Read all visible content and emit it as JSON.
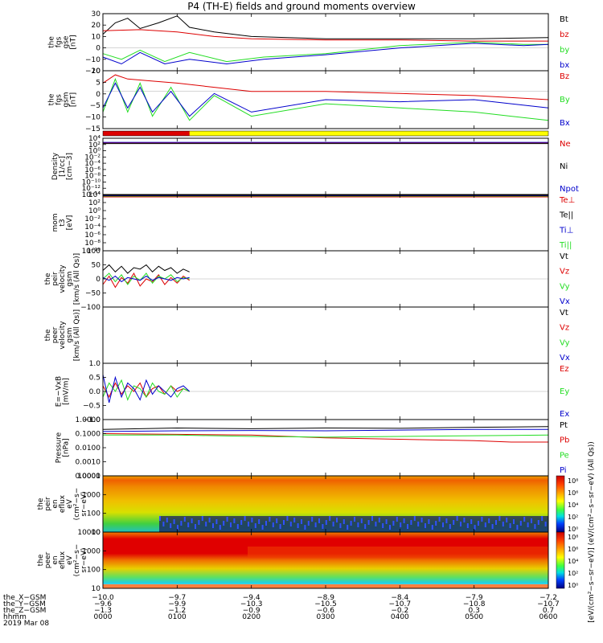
{
  "title": "P4 (TH-E) fields and ground moments overview",
  "colors": {
    "black": "#000000",
    "red": "#dd0000",
    "green": "#22dd22",
    "blue": "#0000cc",
    "yellow": "#ffff00"
  },
  "chart_data": [
    {
      "type": "line",
      "id": "fgs_gse",
      "ylabel": [
        "the",
        "fgs",
        "gse",
        "[nT]"
      ],
      "yticks": [
        "30",
        "20",
        "10",
        "0",
        "−10",
        "−20"
      ],
      "ylim": [
        -20,
        30
      ],
      "legend": [
        {
          "name": "Bt",
          "color": "black"
        },
        {
          "name": "bz",
          "color": "red"
        },
        {
          "name": "by",
          "color": "green"
        },
        {
          "name": "bx",
          "color": "blue"
        }
      ],
      "series": [
        {
          "name": "Bt",
          "color": "black",
          "x": [
            0,
            10,
            20,
            30,
            45,
            60,
            70,
            90,
            120,
            180,
            240,
            300,
            360
          ],
          "y": [
            12,
            22,
            26,
            17,
            22,
            28,
            18,
            14,
            10,
            8,
            8,
            8,
            9
          ]
        },
        {
          "name": "bz",
          "color": "red",
          "x": [
            0,
            30,
            60,
            90,
            120,
            180,
            240,
            300,
            360
          ],
          "y": [
            15,
            16,
            14,
            10,
            8,
            7,
            7,
            6,
            6
          ]
        },
        {
          "name": "by",
          "color": "green",
          "x": [
            0,
            15,
            30,
            50,
            70,
            100,
            130,
            180,
            240,
            300,
            340,
            360
          ],
          "y": [
            -5,
            -10,
            -2,
            -12,
            -4,
            -12,
            -8,
            -5,
            2,
            5,
            3,
            3
          ]
        },
        {
          "name": "bx",
          "color": "blue",
          "x": [
            0,
            15,
            30,
            50,
            70,
            100,
            130,
            180,
            240,
            300,
            340,
            360
          ],
          "y": [
            -8,
            -14,
            -4,
            -14,
            -10,
            -14,
            -10,
            -6,
            0,
            4,
            2,
            3
          ]
        }
      ]
    },
    {
      "type": "line",
      "id": "fgs_gsm",
      "ylabel": [
        "the",
        "fgs",
        "gsm",
        "[nT]"
      ],
      "yticks": [
        "10",
        "5",
        "0",
        "−5",
        "−10",
        "−15"
      ],
      "ylim": [
        -18,
        10
      ],
      "legend": [
        {
          "name": "Bz",
          "color": "red"
        },
        {
          "name": "By",
          "color": "green"
        },
        {
          "name": "Bx",
          "color": "blue"
        }
      ],
      "series": [
        {
          "name": "Bz",
          "color": "red",
          "x": [
            0,
            10,
            20,
            40,
            60,
            90,
            120,
            180,
            240,
            300,
            330,
            360
          ],
          "y": [
            4,
            8,
            6,
            5,
            4,
            2,
            0,
            0,
            -1,
            -2,
            -3,
            -4
          ]
        },
        {
          "name": "By",
          "color": "green",
          "x": [
            0,
            10,
            20,
            30,
            40,
            55,
            70,
            90,
            120,
            180,
            240,
            300,
            330,
            360
          ],
          "y": [
            -10,
            6,
            -10,
            4,
            -12,
            2,
            -14,
            -2,
            -12,
            -6,
            -8,
            -10,
            -12,
            -14
          ]
        },
        {
          "name": "Bx",
          "color": "blue",
          "x": [
            0,
            10,
            20,
            30,
            40,
            55,
            70,
            90,
            120,
            180,
            240,
            300,
            330,
            360
          ],
          "y": [
            -8,
            4,
            -8,
            2,
            -10,
            0,
            -12,
            -1,
            -10,
            -4,
            -5,
            -4,
            -6,
            -8
          ]
        }
      ]
    },
    {
      "type": "log-line",
      "id": "density",
      "ylabel": [
        "Density",
        "[1/cc]",
        "[cm−3]"
      ],
      "yticks": [
        "10⁴",
        "10²",
        "10⁰",
        "10⁻²",
        "10⁻⁴",
        "10⁻⁶",
        "10⁻⁸",
        "10⁻¹⁰",
        "10⁻¹²",
        "10⁻¹⁴"
      ],
      "ylim_log10": [
        -14,
        4
      ],
      "legend": [
        {
          "name": "Ne",
          "color": "red"
        },
        {
          "name": "Ni",
          "color": "black"
        },
        {
          "name": "Npot",
          "color": "blue"
        }
      ],
      "series": [
        {
          "name": "Ne",
          "color": "red",
          "x": [
            0,
            360
          ],
          "y_log10": [
            2.5,
            2.5
          ]
        },
        {
          "name": "Ni",
          "color": "black",
          "x": [
            0,
            360
          ],
          "y_log10": [
            2.3,
            2.3
          ]
        },
        {
          "name": "Npot",
          "color": "blue",
          "x": [
            0,
            360
          ],
          "y_log10": [
            2.7,
            2.7
          ]
        }
      ]
    },
    {
      "type": "log-line",
      "id": "temperature",
      "ylabel": [
        "mom",
        "t3",
        "[eV]"
      ],
      "yticks": [
        "10⁴",
        "10²",
        "10⁰",
        "10⁻²",
        "10⁻⁴",
        "10⁻⁶",
        "10⁻⁸",
        "10⁻¹⁰"
      ],
      "ylim_log10": [
        -10,
        4
      ],
      "legend": [
        {
          "name": "Te⊥",
          "color": "red"
        },
        {
          "name": "Te||",
          "color": "black"
        },
        {
          "name": "Ti⊥",
          "color": "blue"
        },
        {
          "name": "Ti||",
          "color": "green"
        }
      ],
      "series": [
        {
          "name": "Te⊥",
          "color": "red",
          "x": [
            0,
            360
          ],
          "y_log10": [
            3.4,
            3.4
          ]
        },
        {
          "name": "Ti||",
          "color": "green",
          "x": [
            0,
            360
          ],
          "y_log10": [
            3.6,
            3.6
          ]
        },
        {
          "name": "Ti⊥",
          "color": "blue",
          "x": [
            0,
            360
          ],
          "y_log10": [
            3.7,
            3.7
          ]
        },
        {
          "name": "Te||",
          "color": "black",
          "x": [
            0,
            360
          ],
          "y_log10": [
            3.8,
            3.8
          ]
        }
      ]
    },
    {
      "type": "line",
      "id": "peir_velocity",
      "ylabel": [
        "the",
        "peir",
        "velocity",
        "gsm",
        "[km/s (All Qs)]"
      ],
      "yticks": [
        "100",
        "50",
        "0",
        "−50",
        "−100"
      ],
      "ylim": [
        -100,
        100
      ],
      "legend": [
        {
          "name": "Vt",
          "color": "black"
        },
        {
          "name": "Vz",
          "color": "red"
        },
        {
          "name": "Vy",
          "color": "green"
        },
        {
          "name": "Vx",
          "color": "blue"
        }
      ],
      "series": [
        {
          "name": "Vt",
          "color": "black",
          "x": [
            0,
            5,
            10,
            15,
            20,
            25,
            30,
            35,
            40,
            45,
            50,
            55,
            60,
            65,
            70
          ],
          "y": [
            30,
            50,
            25,
            45,
            20,
            40,
            35,
            50,
            25,
            45,
            30,
            40,
            20,
            35,
            25
          ]
        },
        {
          "name": "Vz",
          "color": "red",
          "x": [
            0,
            5,
            10,
            15,
            20,
            25,
            30,
            35,
            40,
            45,
            50,
            55,
            60,
            65,
            70
          ],
          "y": [
            -20,
            10,
            -30,
            5,
            -15,
            20,
            -25,
            0,
            -10,
            15,
            -20,
            5,
            -15,
            10,
            -5
          ]
        },
        {
          "name": "Vy",
          "color": "green",
          "x": [
            0,
            5,
            10,
            15,
            20,
            25,
            30,
            35,
            40,
            45,
            50,
            55,
            60,
            65,
            70
          ],
          "y": [
            0,
            20,
            -10,
            15,
            -20,
            10,
            -5,
            20,
            -15,
            10,
            0,
            15,
            -10,
            5,
            0
          ]
        },
        {
          "name": "Vx",
          "color": "blue",
          "x": [
            0,
            5,
            10,
            15,
            20,
            25,
            30,
            35,
            40,
            45,
            50,
            55,
            60,
            65,
            70
          ],
          "y": [
            5,
            -5,
            10,
            -10,
            5,
            0,
            -5,
            10,
            -5,
            5,
            0,
            -5,
            5,
            0,
            5
          ]
        }
      ]
    },
    {
      "type": "line",
      "id": "peer_velocity",
      "ylabel": [
        "the",
        "peer",
        "velocity",
        "gsm",
        "[km/s (All Qs)]"
      ],
      "yticks": [],
      "ylim": [
        -100,
        100
      ],
      "legend": [
        {
          "name": "Vt",
          "color": "black"
        },
        {
          "name": "Vz",
          "color": "red"
        },
        {
          "name": "Vy",
          "color": "green"
        },
        {
          "name": "Vx",
          "color": "blue"
        }
      ],
      "series": []
    },
    {
      "type": "line",
      "id": "efield",
      "ylabel": [
        "E=−VxB",
        "[mV/m]"
      ],
      "yticks": [
        "1.0",
        "0.5",
        "0.0",
        "−0.5",
        "−1.0"
      ],
      "ylim": [
        -1,
        1
      ],
      "legend": [
        {
          "name": "Ez",
          "color": "red"
        },
        {
          "name": "Ey",
          "color": "green"
        },
        {
          "name": "Ex",
          "color": "blue"
        }
      ],
      "series": [
        {
          "name": "Ez",
          "color": "red",
          "x": [
            0,
            5,
            10,
            15,
            20,
            25,
            30,
            35,
            40,
            45,
            50,
            55,
            60,
            65,
            70
          ],
          "y": [
            0.2,
            -0.2,
            0.3,
            -0.1,
            0.2,
            0,
            0.3,
            -0.2,
            0.1,
            0.2,
            -0.1,
            0.2,
            0,
            0.1,
            0
          ]
        },
        {
          "name": "Ey",
          "color": "green",
          "x": [
            0,
            5,
            10,
            15,
            20,
            25,
            30,
            35,
            40,
            45,
            50,
            55,
            60,
            65,
            70
          ],
          "y": [
            -0.2,
            0.3,
            0,
            0.4,
            -0.3,
            0.2,
            0.1,
            -0.2,
            0.3,
            0,
            -0.1,
            0.2,
            -0.2,
            0.1,
            0
          ]
        },
        {
          "name": "Ex",
          "color": "blue",
          "x": [
            0,
            5,
            10,
            15,
            20,
            25,
            30,
            35,
            40,
            45,
            50,
            55,
            60,
            65,
            70
          ],
          "y": [
            0.6,
            -0.4,
            0.5,
            -0.2,
            0.3,
            0.1,
            -0.3,
            0.4,
            -0.1,
            0.2,
            0,
            -0.2,
            0.1,
            0.2,
            0
          ]
        }
      ]
    },
    {
      "type": "log-line",
      "id": "pressure",
      "ylabel": [
        "Pressure",
        "[nPa]"
      ],
      "yticks": [
        "1.0000",
        "0.1000",
        "0.0100",
        "0.0010",
        "0.0001"
      ],
      "ylim_log10": [
        -4,
        0
      ],
      "legend": [
        {
          "name": "Pt",
          "color": "black"
        },
        {
          "name": "Pb",
          "color": "red"
        },
        {
          "name": "Pe",
          "color": "green"
        },
        {
          "name": "Pi",
          "color": "blue"
        }
      ],
      "series": [
        {
          "name": "Pt",
          "color": "black",
          "x": [
            0,
            60,
            120,
            180,
            240,
            300,
            360
          ],
          "y_log10": [
            -0.7,
            -0.6,
            -0.65,
            -0.6,
            -0.62,
            -0.55,
            -0.5
          ]
        },
        {
          "name": "Pb",
          "color": "red",
          "x": [
            0,
            60,
            120,
            180,
            240,
            300,
            330,
            360
          ],
          "y_log10": [
            -1.0,
            -1.05,
            -1.1,
            -1.3,
            -1.4,
            -1.5,
            -1.6,
            -1.6
          ]
        },
        {
          "name": "Pe",
          "color": "green",
          "x": [
            0,
            60,
            120,
            180,
            240,
            300,
            360
          ],
          "y_log10": [
            -1.1,
            -1.1,
            -1.2,
            -1.25,
            -1.2,
            -1.15,
            -1.1
          ]
        },
        {
          "name": "Pi",
          "color": "blue",
          "x": [
            0,
            60,
            120,
            180,
            240,
            300,
            360
          ],
          "y_log10": [
            -0.85,
            -0.8,
            -0.78,
            -0.8,
            -0.75,
            -0.7,
            -0.7
          ]
        }
      ]
    },
    {
      "type": "heatmap",
      "id": "peir_eflux",
      "ylabel": [
        "the",
        "peir",
        "en",
        "eflux",
        "eV",
        "(cm²−s−",
        "sr−eV)"
      ],
      "yticks": [
        "10000",
        "1000",
        "100",
        "10"
      ]
    },
    {
      "type": "heatmap",
      "id": "peer_eflux",
      "ylabel": [
        "the",
        "peer",
        "en",
        "eflux",
        "eV",
        "(cm²−s−",
        "sr−eV)"
      ],
      "yticks": [
        "10000",
        "1000",
        "100",
        "10"
      ]
    }
  ],
  "status_bar": {
    "x_end_minute": 70
  },
  "colorbars": [
    {
      "ticks": [
        "10⁸",
        "10⁶",
        "10⁴",
        "10²",
        "10⁰"
      ]
    },
    {
      "ticks": [
        "10⁸",
        "10⁶",
        "10⁴",
        "10²",
        "10⁰"
      ]
    }
  ],
  "colorbar_label": "[eV/(cm²−s−sr−eV)] (eV/(cm²−s−sr−eV) (All Qs))",
  "xaxis": {
    "rows": [
      {
        "label": "the_X−GSM",
        "values": [
          "−10.0",
          "−9.7",
          "−9.4",
          "−8.9",
          "−8.4",
          "−7.9",
          "−7.2"
        ]
      },
      {
        "label": "the_Y−GSM",
        "values": [
          "−9.6",
          "−9.9",
          "−10.3",
          "−10.5",
          "−10.7",
          "−10.8",
          "−10.7"
        ]
      },
      {
        "label": "the_Z−GSM",
        "values": [
          "−1.3",
          "−1.2",
          "−0.9",
          "−0.6",
          "−0.2",
          "0.3",
          "0.7"
        ]
      },
      {
        "label": "hhmm",
        "values": [
          "0000",
          "0100",
          "0200",
          "0300",
          "0400",
          "0500",
          "0600"
        ]
      }
    ],
    "date": "2019 Mar 08"
  }
}
